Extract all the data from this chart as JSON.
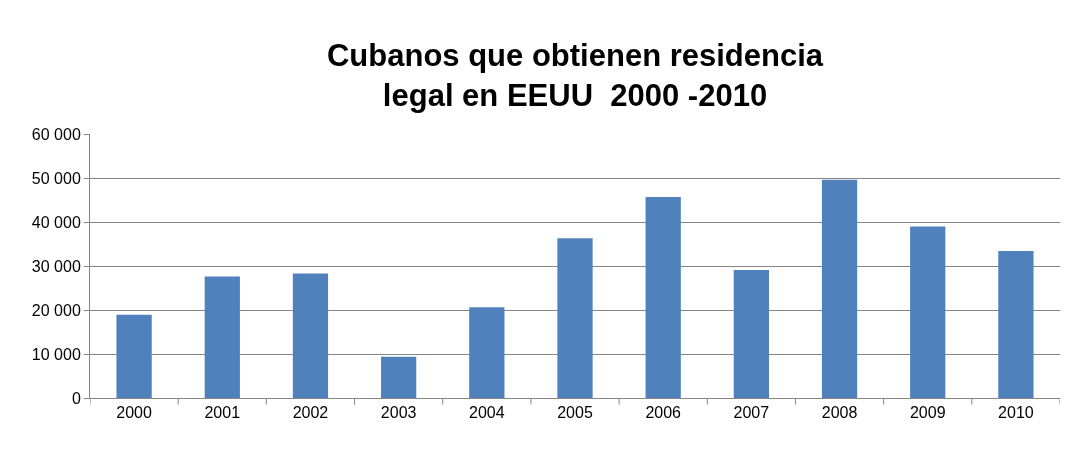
{
  "chart_data": {
    "type": "bar",
    "title": "Cubanos que obtienen residencia\nlegal en EEUU  2000 -2010",
    "categories": [
      "2000",
      "2001",
      "2002",
      "2003",
      "2004",
      "2005",
      "2006",
      "2007",
      "2008",
      "2009",
      "2010"
    ],
    "values": [
      18900,
      27600,
      28300,
      9400,
      20600,
      36300,
      45700,
      29100,
      49600,
      39000,
      33400
    ],
    "color": "#4f81bd",
    "ylim": [
      0,
      60000
    ],
    "yticks": [
      {
        "value": 0,
        "label": "0"
      },
      {
        "value": 10000,
        "label": "10 000"
      },
      {
        "value": 20000,
        "label": "20 000"
      },
      {
        "value": 30000,
        "label": "30 000"
      },
      {
        "value": 40000,
        "label": "40 000"
      },
      {
        "value": 50000,
        "label": "50 000"
      },
      {
        "value": 60000,
        "label": "60 000"
      }
    ],
    "grid": "y",
    "legend": false
  }
}
